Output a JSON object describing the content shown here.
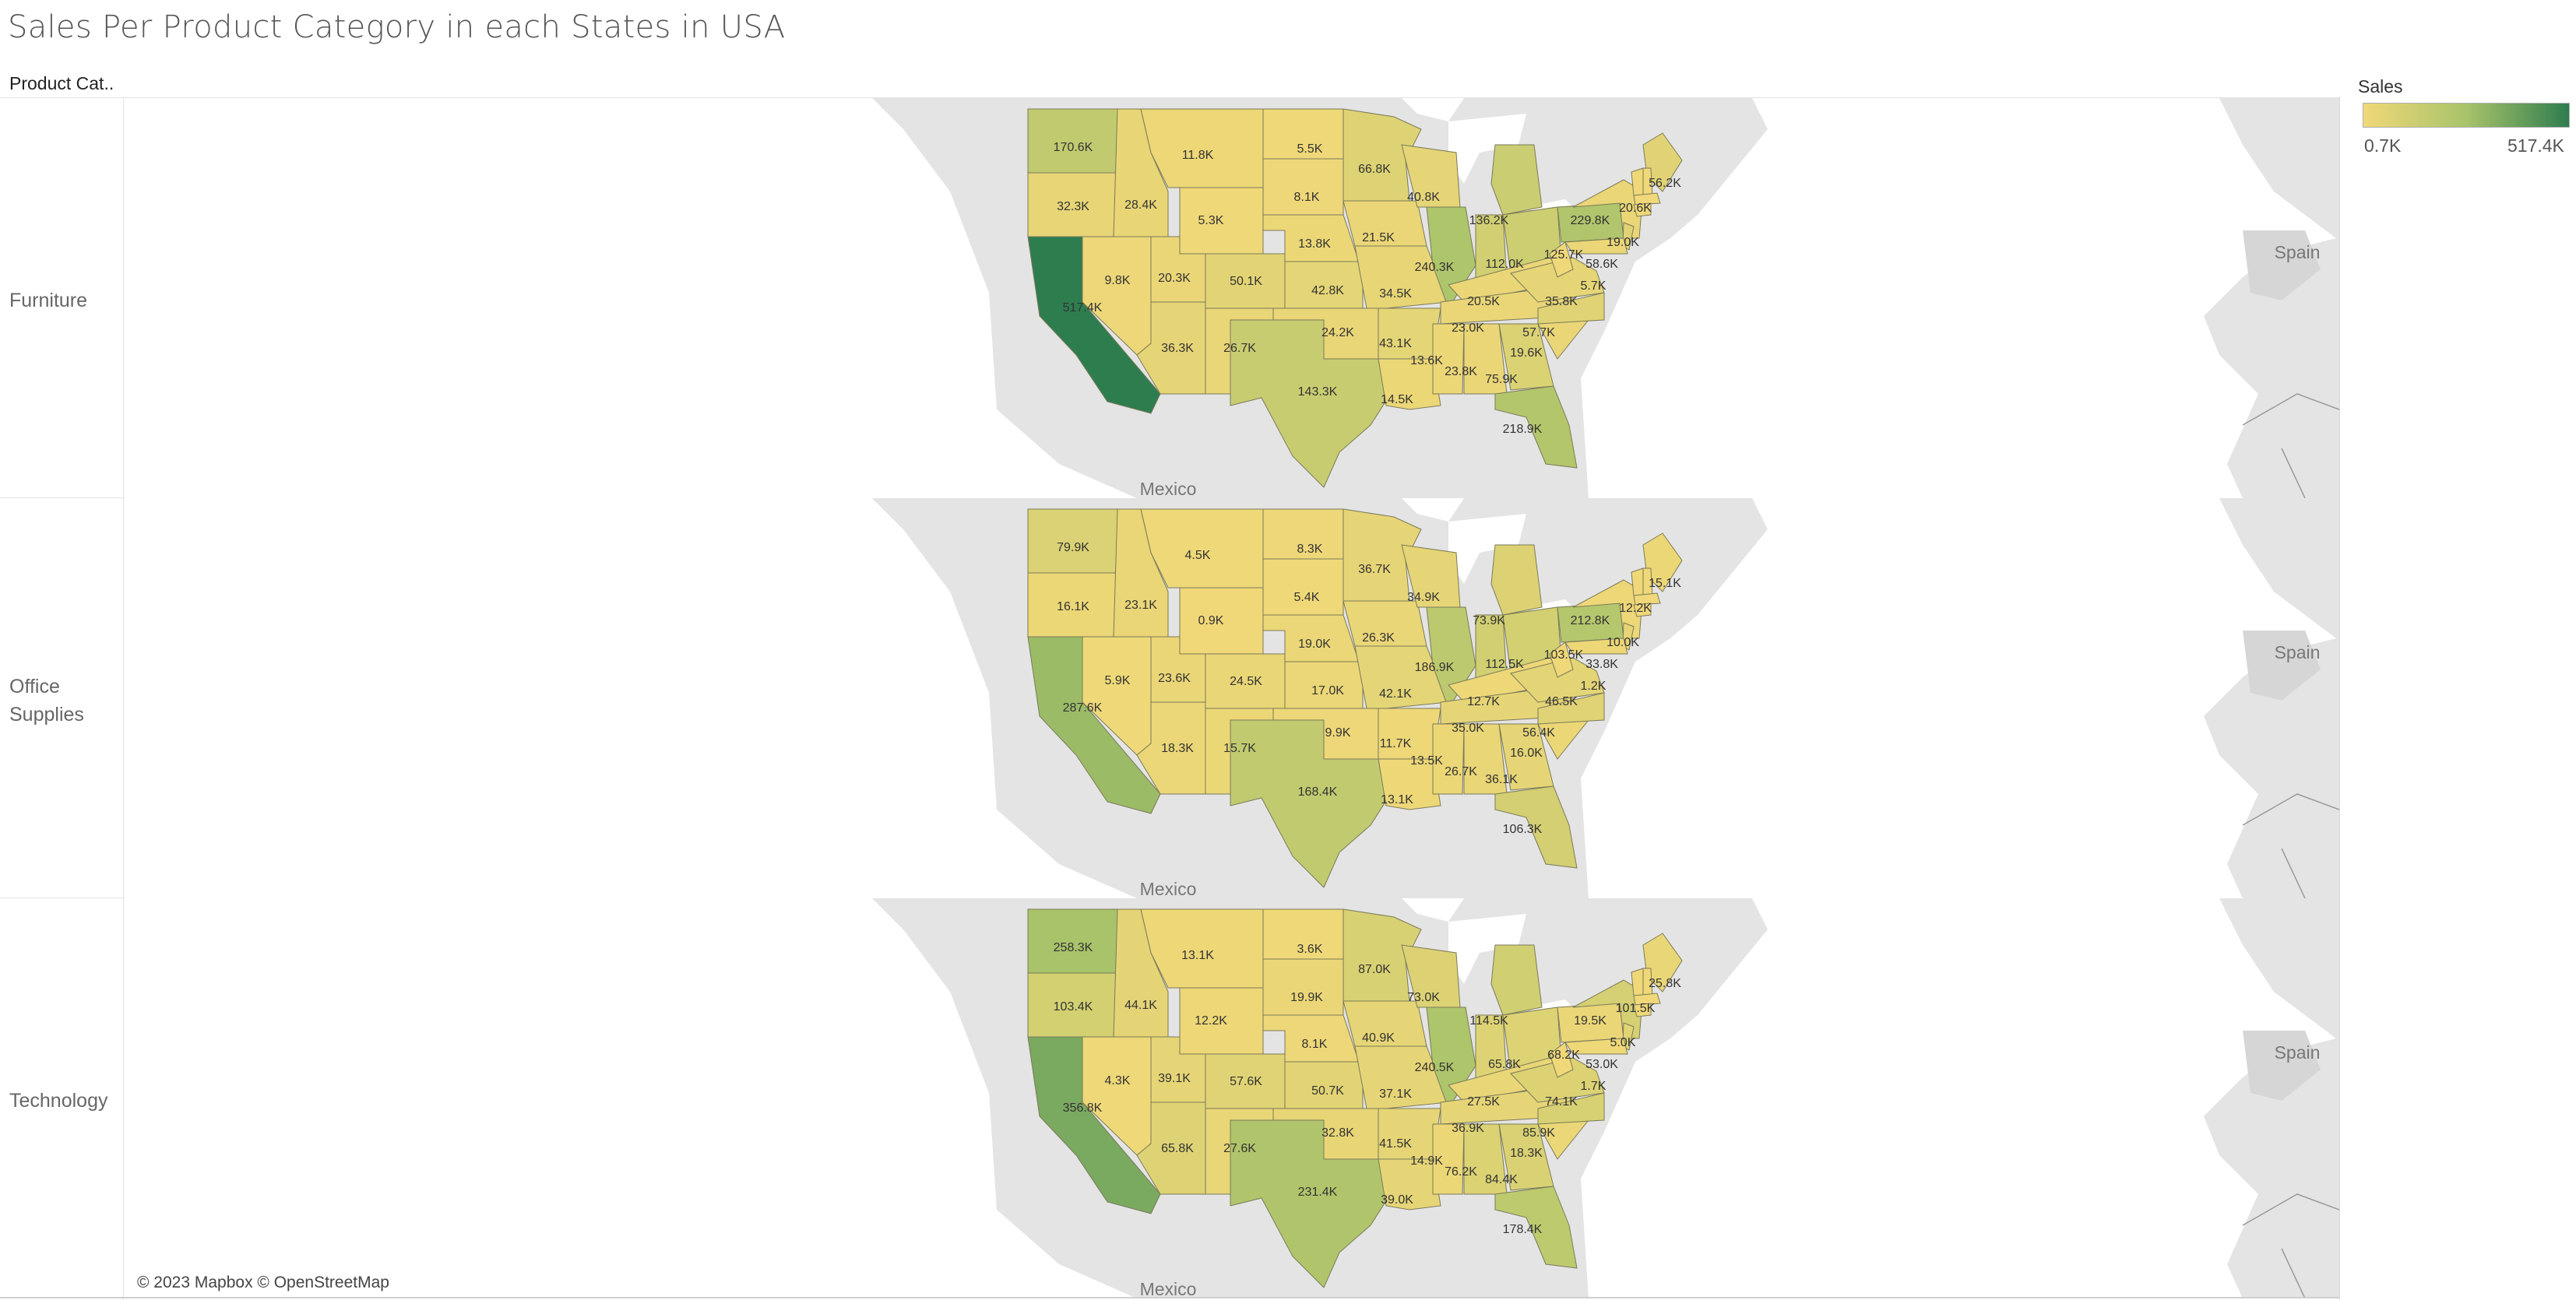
{
  "title": "Sales Per Product Category in each States in USA",
  "column_header": "Product Cat..",
  "credit": "© 2023 Mapbox © OpenStreetMap",
  "country_labels": {
    "spain": "Spain",
    "mexico": "Mexico"
  },
  "legend": {
    "title": "Sales",
    "min": "0.7K",
    "max": "517.4K",
    "colors": [
      "#f0d878",
      "#a8c36a",
      "#2e7d4f"
    ]
  },
  "rows": [
    {
      "label": "Furniture",
      "values": {
        "WA": "170.6K",
        "OR": "32.3K",
        "CA": "517.4K",
        "NV": "9.8K",
        "ID": "28.4K",
        "MT": "11.8K",
        "WY": "5.3K",
        "UT": "20.3K",
        "CO": "50.1K",
        "AZ": "36.3K",
        "NM": "26.7K",
        "ND": "5.5K",
        "SD": "8.1K",
        "NE": "13.8K",
        "KS": "42.8K",
        "OK": "24.2K",
        "TX": "143.3K",
        "MN": "66.8K",
        "IA": "21.5K",
        "MO": "34.5K",
        "AR": "43.1K",
        "LA": "14.5K",
        "WI": "40.8K",
        "IL": "240.3K",
        "MI": "136.2K",
        "IN": "112.0K",
        "OH": "125.7K",
        "KY": "20.5K",
        "TN": "23.0K",
        "MS": "13.6K",
        "AL": "23.8K",
        "GA": "75.9K",
        "FL": "218.9K",
        "SC": "19.6K",
        "NC": "57.7K",
        "VA": "35.8K",
        "WV": "5.7K",
        "PA": "229.8K",
        "NY": "20.6K",
        "NJ": "58.6K",
        "MD": "19.0K",
        "ME": "56.2K"
      }
    },
    {
      "label": "Office Supplies",
      "values": {
        "WA": "79.9K",
        "OR": "16.1K",
        "CA": "287.6K",
        "NV": "5.9K",
        "ID": "23.1K",
        "MT": "4.5K",
        "WY": "0.9K",
        "UT": "23.6K",
        "CO": "24.5K",
        "AZ": "18.3K",
        "NM": "15.7K",
        "ND": "8.3K",
        "SD": "5.4K",
        "NE": "19.0K",
        "KS": "17.0K",
        "OK": "9.9K",
        "TX": "168.4K",
        "MN": "36.7K",
        "IA": "26.3K",
        "MO": "42.1K",
        "AR": "11.7K",
        "LA": "13.1K",
        "WI": "34.9K",
        "IL": "186.9K",
        "MI": "73.9K",
        "IN": "112.5K",
        "OH": "103.5K",
        "KY": "12.7K",
        "TN": "35.0K",
        "MS": "13.5K",
        "AL": "26.7K",
        "GA": "36.1K",
        "FL": "106.3K",
        "SC": "16.0K",
        "NC": "56.4K",
        "VA": "46.5K",
        "WV": "1.2K",
        "PA": "212.8K",
        "NY": "12.2K",
        "NJ": "33.8K",
        "MD": "10.0K",
        "ME": "15.1K"
      }
    },
    {
      "label": "Technology",
      "values": {
        "WA": "258.3K",
        "OR": "103.4K",
        "CA": "356.8K",
        "NV": "4.3K",
        "ID": "44.1K",
        "MT": "13.1K",
        "WY": "12.2K",
        "UT": "39.1K",
        "CO": "57.6K",
        "AZ": "65.8K",
        "NM": "27.6K",
        "ND": "3.6K",
        "SD": "19.9K",
        "NE": "8.1K",
        "KS": "50.7K",
        "OK": "32.8K",
        "TX": "231.4K",
        "MN": "87.0K",
        "IA": "40.9K",
        "MO": "37.1K",
        "AR": "41.5K",
        "LA": "39.0K",
        "WI": "73.0K",
        "IL": "240.5K",
        "MI": "114.5K",
        "IN": "65.8K",
        "OH": "68.2K",
        "KY": "27.5K",
        "TN": "36.9K",
        "MS": "14.9K",
        "AL": "76.2K",
        "GA": "84.4K",
        "FL": "178.4K",
        "SC": "18.3K",
        "NC": "85.9K",
        "VA": "74.1K",
        "WV": "1.7K",
        "PA": "19.5K",
        "NY": "101.5K",
        "NJ": "53.0K",
        "MD": "5.0K",
        "ME": "25.8K"
      }
    }
  ]
}
